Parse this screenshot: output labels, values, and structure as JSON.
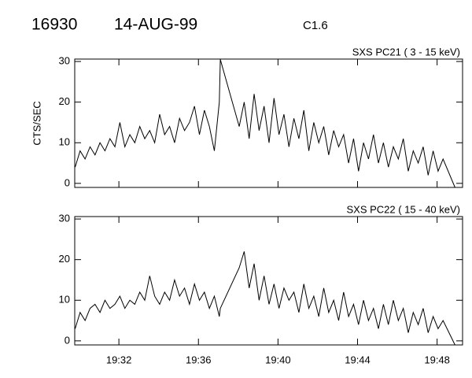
{
  "header": {
    "id": "16930",
    "date": "14-AUG-99",
    "class": "C1.6"
  },
  "chart_data": [
    {
      "type": "line",
      "title": "SXS PC21  (  3 - 15 keV)",
      "ylabel": "CTS/SEC",
      "x": [
        29.8,
        30.05,
        30.3,
        30.55,
        30.8,
        31.05,
        31.3,
        31.55,
        31.8,
        32.05,
        32.3,
        32.55,
        32.8,
        33.05,
        33.3,
        33.55,
        33.8,
        34.05,
        34.3,
        34.55,
        34.8,
        35.05,
        35.3,
        35.55,
        35.8,
        36.05,
        36.3,
        36.55,
        36.8,
        37.05,
        37.1,
        38.05,
        38.3,
        38.55,
        38.8,
        39.05,
        39.3,
        39.55,
        39.8,
        40.05,
        40.3,
        40.55,
        40.8,
        41.05,
        41.3,
        41.55,
        41.8,
        42.05,
        42.3,
        42.55,
        42.8,
        43.05,
        43.3,
        43.55,
        43.8,
        44.05,
        44.3,
        44.55,
        44.8,
        45.05,
        45.3,
        45.55,
        45.8,
        46.05,
        46.3,
        46.55,
        46.8,
        47.05,
        47.3,
        47.55,
        47.8,
        48.05,
        48.3,
        48.9
      ],
      "values": [
        4,
        8,
        6,
        9,
        7,
        10,
        8,
        11,
        9,
        15,
        9,
        12,
        10,
        14,
        11,
        13,
        10,
        17,
        12,
        14,
        10,
        16,
        13,
        15,
        19,
        12,
        18,
        14,
        8,
        20,
        30.5,
        14,
        20,
        11,
        22,
        13,
        19,
        10,
        21,
        12,
        17,
        9,
        16,
        11,
        18,
        8,
        15,
        10,
        14,
        7,
        13,
        9,
        12,
        5,
        11,
        3,
        10,
        6,
        12,
        5,
        10,
        4,
        9,
        6,
        11,
        3,
        8,
        5,
        9,
        2,
        8,
        3,
        6,
        -1
      ],
      "color": "#000000",
      "xlim": [
        29.78,
        49.28
      ],
      "ylim": [
        -1,
        30.6
      ],
      "xticks": [
        32,
        36,
        40,
        44,
        48
      ],
      "yticks": [
        0,
        10,
        20,
        30
      ]
    },
    {
      "type": "line",
      "title": "SXS PC22  ( 15 - 40 keV)",
      "x": [
        29.8,
        30.05,
        30.3,
        30.55,
        30.8,
        31.05,
        31.3,
        31.55,
        31.8,
        32.05,
        32.3,
        32.55,
        32.8,
        33.05,
        33.3,
        33.55,
        33.8,
        34.05,
        34.3,
        34.55,
        34.8,
        35.05,
        35.3,
        35.55,
        35.8,
        36.05,
        36.3,
        36.55,
        36.8,
        37.05,
        37.1,
        38.05,
        38.3,
        38.55,
        38.8,
        39.05,
        39.3,
        39.55,
        39.8,
        40.05,
        40.3,
        40.55,
        40.8,
        41.05,
        41.3,
        41.55,
        41.8,
        42.05,
        42.3,
        42.55,
        42.8,
        43.05,
        43.3,
        43.55,
        43.8,
        44.05,
        44.3,
        44.55,
        44.8,
        45.05,
        45.3,
        45.55,
        45.8,
        46.05,
        46.3,
        46.55,
        46.8,
        47.05,
        47.3,
        47.55,
        47.8,
        48.05,
        48.3,
        48.9
      ],
      "values": [
        3,
        7,
        5,
        8,
        9,
        7,
        10,
        8,
        9,
        11,
        8,
        10,
        9,
        12,
        10,
        16,
        11,
        9,
        12,
        10,
        15,
        11,
        13,
        9,
        14,
        10,
        12,
        8,
        11,
        6,
        8,
        18,
        22,
        13,
        19,
        10,
        16,
        9,
        14,
        8,
        13,
        10,
        12,
        7,
        14,
        8,
        11,
        6,
        13,
        7,
        10,
        5,
        12,
        6,
        9,
        4,
        10,
        5,
        8,
        3,
        9,
        4,
        10,
        5,
        8,
        2,
        7,
        4,
        8,
        2,
        6,
        3,
        5,
        -1
      ],
      "color": "#000000",
      "xlim": [
        29.78,
        49.28
      ],
      "ylim": [
        -1,
        30.6
      ],
      "xticks": [
        {
          "value": 32,
          "label": "19:32"
        },
        {
          "value": 36,
          "label": "19:36"
        },
        {
          "value": 40,
          "label": "19:40"
        },
        {
          "value": 44,
          "label": "19:44"
        },
        {
          "value": 48,
          "label": "19:48"
        }
      ],
      "yticks": [
        0,
        10,
        20,
        30
      ]
    }
  ]
}
